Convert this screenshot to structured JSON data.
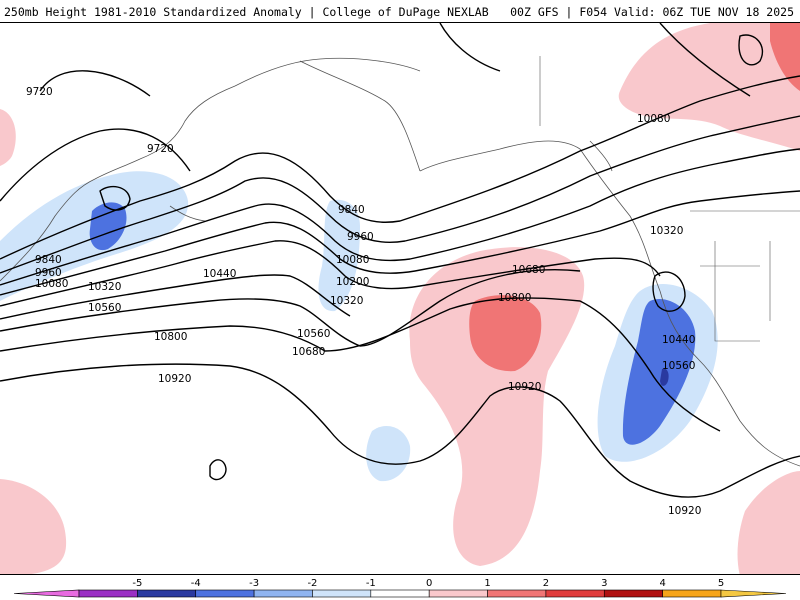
{
  "header": {
    "title_left": "250mb Height 1981-2010 Standardized Anomaly | College of DuPage NEXLAB",
    "title_right": "00Z GFS | F054 Valid: 06Z TUE NOV 18 2025"
  },
  "map": {
    "contour_labels": [
      "9720",
      "9720",
      "9840",
      "9960",
      "10080",
      "10320",
      "10440",
      "10560",
      "10800",
      "9840",
      "9960",
      "10080",
      "10200",
      "10320",
      "10560",
      "10680",
      "10680",
      "10800",
      "10920",
      "10440",
      "10560",
      "10320",
      "10080",
      "10920"
    ]
  },
  "colorbar": {
    "ticks": [
      "-5",
      "-4",
      "-3",
      "-2",
      "-1",
      "0",
      "1",
      "2",
      "3",
      "4",
      "5"
    ],
    "colors": [
      "#e86be0",
      "#9a2fc4",
      "#2a3aa0",
      "#4d72e0",
      "#8fb4f0",
      "#cfe4fa",
      "#ffffff",
      "#f9c8cc",
      "#f07575",
      "#e03c3c",
      "#b01010",
      "#f6a51a",
      "#f4c842"
    ]
  }
}
